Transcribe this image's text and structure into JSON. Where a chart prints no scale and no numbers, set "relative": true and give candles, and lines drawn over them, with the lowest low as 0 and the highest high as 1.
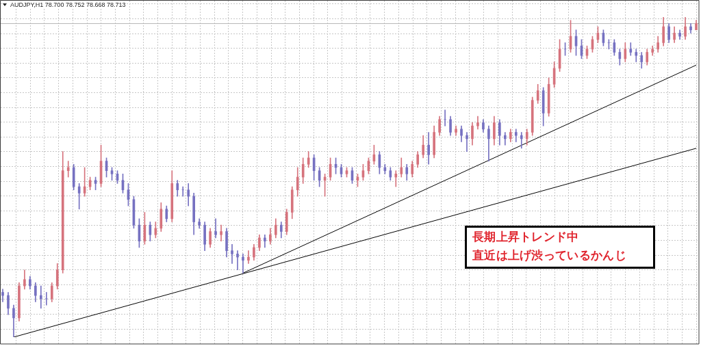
{
  "chart_data": {
    "type": "candlestick",
    "title": "AUDJPY,H1 78.700 78.752 78.668 78.713",
    "relative": true,
    "grid": true,
    "categories": [
      null,
      null,
      null,
      null,
      null,
      null,
      null,
      null,
      null,
      null,
      null,
      null,
      null,
      null,
      null,
      null,
      null,
      null,
      null,
      null,
      null,
      null,
      null,
      null,
      null,
      null,
      null,
      null,
      null,
      null,
      null,
      null,
      null,
      null,
      null,
      null,
      null,
      null,
      null,
      null,
      null,
      null,
      null,
      null,
      null,
      null,
      null,
      null,
      null,
      null,
      null,
      null,
      null,
      null,
      null,
      null,
      null,
      null,
      null,
      null,
      null,
      null,
      null,
      null,
      null,
      null,
      null,
      null,
      null,
      null,
      null,
      null,
      null,
      null,
      null,
      null,
      null,
      null,
      null,
      null,
      null,
      null,
      null,
      null,
      null,
      null,
      null,
      null,
      null,
      null,
      null,
      null,
      null,
      null,
      null,
      null,
      null,
      null,
      null,
      null,
      null,
      null,
      null,
      null,
      null,
      null,
      null,
      null,
      null,
      null,
      null,
      null,
      null,
      null,
      null,
      null,
      null,
      null,
      null,
      null,
      null,
      null,
      null,
      null,
      null,
      null,
      null,
      null
    ],
    "ohlc": [
      [
        0.14,
        0.15,
        0.11,
        0.13
      ],
      [
        0.13,
        0.14,
        0.07,
        0.09
      ],
      [
        0.09,
        0.1,
        0,
        0.06
      ],
      [
        0.06,
        0.17,
        0.05,
        0.16
      ],
      [
        0.16,
        0.21,
        0.15,
        0.18
      ],
      [
        0.18,
        0.19,
        0.15,
        0.16
      ],
      [
        0.16,
        0.17,
        0.11,
        0.13
      ],
      [
        0.13,
        0.16,
        0.09,
        0.12
      ],
      [
        0.12,
        0.14,
        0.1,
        0.12
      ],
      [
        0.12,
        0.17,
        0.11,
        0.16
      ],
      [
        0.16,
        0.23,
        0.15,
        0.21
      ],
      [
        0.21,
        0.58,
        0.2,
        0.52
      ],
      [
        0.52,
        0.55,
        0.5,
        0.53
      ],
      [
        0.53,
        0.54,
        0.46,
        0.47
      ],
      [
        0.47,
        0.48,
        0.4,
        0.45
      ],
      [
        0.45,
        0.53,
        0.44,
        0.47
      ],
      [
        0.47,
        0.5,
        0.46,
        0.49
      ],
      [
        0.49,
        0.5,
        0.46,
        0.48
      ],
      [
        0.48,
        0.6,
        0.47,
        0.55
      ],
      [
        0.55,
        0.56,
        0.5,
        0.52
      ],
      [
        0.52,
        0.53,
        0.49,
        0.51
      ],
      [
        0.51,
        0.52,
        0.48,
        0.49
      ],
      [
        0.49,
        0.51,
        0.45,
        0.46
      ],
      [
        0.46,
        0.48,
        0.41,
        0.43
      ],
      [
        0.43,
        0.44,
        0.34,
        0.35
      ],
      [
        0.35,
        0.37,
        0.28,
        0.3
      ],
      [
        0.3,
        0.39,
        0.29,
        0.35
      ],
      [
        0.35,
        0.36,
        0.3,
        0.32
      ],
      [
        0.32,
        0.36,
        0.31,
        0.34
      ],
      [
        0.34,
        0.42,
        0.33,
        0.4
      ],
      [
        0.4,
        0.41,
        0.36,
        0.37
      ],
      [
        0.37,
        0.52,
        0.36,
        0.48
      ],
      [
        0.48,
        0.49,
        0.44,
        0.46
      ],
      [
        0.46,
        0.47,
        0.44,
        0.46
      ],
      [
        0.46,
        0.48,
        0.41,
        0.44
      ],
      [
        0.44,
        0.45,
        0.32,
        0.36
      ],
      [
        0.36,
        0.37,
        0.34,
        0.35
      ],
      [
        0.35,
        0.36,
        0.27,
        0.29
      ],
      [
        0.29,
        0.34,
        0.28,
        0.33
      ],
      [
        0.33,
        0.37,
        0.31,
        0.32
      ],
      [
        0.32,
        0.35,
        0.3,
        0.33
      ],
      [
        0.33,
        0.34,
        0.25,
        0.27
      ],
      [
        0.27,
        0.29,
        0.23,
        0.26
      ],
      [
        0.26,
        0.27,
        0.21,
        0.25
      ],
      [
        0.25,
        0.26,
        0.2,
        0.24
      ],
      [
        0.24,
        0.27,
        0.23,
        0.25
      ],
      [
        0.25,
        0.29,
        0.24,
        0.28
      ],
      [
        0.28,
        0.32,
        0.27,
        0.31
      ],
      [
        0.31,
        0.32,
        0.28,
        0.3
      ],
      [
        0.3,
        0.34,
        0.29,
        0.32
      ],
      [
        0.32,
        0.37,
        0.31,
        0.35
      ],
      [
        0.35,
        0.36,
        0.31,
        0.33
      ],
      [
        0.33,
        0.4,
        0.32,
        0.39
      ],
      [
        0.39,
        0.47,
        0.37,
        0.46
      ],
      [
        0.46,
        0.53,
        0.44,
        0.5
      ],
      [
        0.5,
        0.56,
        0.48,
        0.54
      ],
      [
        0.54,
        0.58,
        0.53,
        0.56
      ],
      [
        0.56,
        0.57,
        0.49,
        0.52
      ],
      [
        0.52,
        0.53,
        0.47,
        0.49
      ],
      [
        0.49,
        0.51,
        0.44,
        0.5
      ],
      [
        0.5,
        0.56,
        0.49,
        0.54
      ],
      [
        0.54,
        0.56,
        0.51,
        0.53
      ],
      [
        0.53,
        0.54,
        0.5,
        0.51
      ],
      [
        0.51,
        0.53,
        0.5,
        0.52
      ],
      [
        0.52,
        0.53,
        0.48,
        0.49
      ],
      [
        0.49,
        0.51,
        0.47,
        0.5
      ],
      [
        0.5,
        0.54,
        0.49,
        0.52
      ],
      [
        0.52,
        0.56,
        0.51,
        0.55
      ],
      [
        0.55,
        0.6,
        0.54,
        0.57
      ],
      [
        0.57,
        0.58,
        0.51,
        0.53
      ],
      [
        0.53,
        0.54,
        0.51,
        0.52
      ],
      [
        0.52,
        0.53,
        0.49,
        0.5
      ],
      [
        0.5,
        0.52,
        0.47,
        0.51
      ],
      [
        0.51,
        0.56,
        0.5,
        0.53
      ],
      [
        0.53,
        0.54,
        0.49,
        0.51
      ],
      [
        0.51,
        0.55,
        0.5,
        0.54
      ],
      [
        0.54,
        0.58,
        0.53,
        0.57
      ],
      [
        0.57,
        0.63,
        0.56,
        0.6
      ],
      [
        0.6,
        0.64,
        0.54,
        0.57
      ],
      [
        0.57,
        0.66,
        0.56,
        0.64
      ],
      [
        0.64,
        0.69,
        0.63,
        0.68
      ],
      [
        0.68,
        0.71,
        0.66,
        0.68
      ],
      [
        0.68,
        0.69,
        0.63,
        0.64
      ],
      [
        0.64,
        0.66,
        0.63,
        0.65
      ],
      [
        0.65,
        0.66,
        0.61,
        0.63
      ],
      [
        0.63,
        0.64,
        0.58,
        0.62
      ],
      [
        0.62,
        0.67,
        0.6,
        0.66
      ],
      [
        0.66,
        0.69,
        0.65,
        0.67
      ],
      [
        0.67,
        0.68,
        0.64,
        0.65
      ],
      [
        0.65,
        0.66,
        0.55,
        0.62
      ],
      [
        0.62,
        0.69,
        0.6,
        0.67
      ],
      [
        0.67,
        0.68,
        0.6,
        0.63
      ],
      [
        0.63,
        0.64,
        0.6,
        0.62
      ],
      [
        0.62,
        0.65,
        0.61,
        0.64
      ],
      [
        0.64,
        0.65,
        0.61,
        0.63
      ],
      [
        0.63,
        0.64,
        0.59,
        0.62
      ],
      [
        0.62,
        0.65,
        0.6,
        0.64
      ],
      [
        0.64,
        0.75,
        0.63,
        0.74
      ],
      [
        0.74,
        0.79,
        0.73,
        0.77
      ],
      [
        0.77,
        0.78,
        0.66,
        0.7
      ],
      [
        0.7,
        0.81,
        0.69,
        0.79
      ],
      [
        0.79,
        0.86,
        0.78,
        0.84
      ],
      [
        0.84,
        0.93,
        0.83,
        0.9
      ],
      [
        0.9,
        0.92,
        0.88,
        0.9
      ],
      [
        0.9,
        0.99,
        0.89,
        0.94
      ],
      [
        0.94,
        0.96,
        0.88,
        0.91
      ],
      [
        0.91,
        0.93,
        0.87,
        0.88
      ],
      [
        0.88,
        0.91,
        0.87,
        0.9
      ],
      [
        0.9,
        0.94,
        0.89,
        0.93
      ],
      [
        0.93,
        0.97,
        0.92,
        0.95
      ],
      [
        0.95,
        0.96,
        0.91,
        0.92
      ],
      [
        0.92,
        0.93,
        0.9,
        0.92
      ],
      [
        0.92,
        0.93,
        0.88,
        0.89
      ],
      [
        0.89,
        0.9,
        0.85,
        0.87
      ],
      [
        0.87,
        0.92,
        0.86,
        0.9
      ],
      [
        0.9,
        0.92,
        0.88,
        0.89
      ],
      [
        0.89,
        0.9,
        0.86,
        0.88
      ],
      [
        0.88,
        0.89,
        0.84,
        0.86
      ],
      [
        0.86,
        0.9,
        0.85,
        0.89
      ],
      [
        0.89,
        0.91,
        0.88,
        0.9
      ],
      [
        0.9,
        0.94,
        0.89,
        0.92
      ],
      [
        0.92,
        1,
        0.91,
        0.97
      ],
      [
        0.97,
        0.98,
        0.92,
        0.93
      ],
      [
        0.93,
        0.97,
        0.92,
        0.95
      ],
      [
        0.95,
        0.96,
        0.93,
        0.94
      ],
      [
        0.94,
        1,
        0.93,
        0.97
      ],
      [
        0.97,
        0.98,
        0.95,
        0.96
      ],
      [
        0.96,
        0.99,
        0.96,
        0.98
      ]
    ],
    "colors": [
      "#7671c1",
      "#7671c1",
      "#7671c1",
      "#d6737d",
      "#d6737d",
      "#7671c1",
      "#7671c1",
      "#7671c1",
      "#7671c1",
      "#d6737d",
      "#d6737d",
      "#d6737d",
      "#d6737d",
      "#7671c1",
      "#7671c1",
      "#d6737d",
      "#d6737d",
      "#7671c1",
      "#d6737d",
      "#7671c1",
      "#7671c1",
      "#7671c1",
      "#7671c1",
      "#7671c1",
      "#7671c1",
      "#7671c1",
      "#d6737d",
      "#7671c1",
      "#d6737d",
      "#d6737d",
      "#7671c1",
      "#d6737d",
      "#7671c1",
      "#7671c1",
      "#7671c1",
      "#7671c1",
      "#7671c1",
      "#7671c1",
      "#d6737d",
      "#7671c1",
      "#d6737d",
      "#7671c1",
      "#7671c1",
      "#7671c1",
      "#7671c1",
      "#d6737d",
      "#d6737d",
      "#d6737d",
      "#7671c1",
      "#d6737d",
      "#d6737d",
      "#7671c1",
      "#d6737d",
      "#d6737d",
      "#d6737d",
      "#d6737d",
      "#d6737d",
      "#7671c1",
      "#7671c1",
      "#d6737d",
      "#d6737d",
      "#7671c1",
      "#7671c1",
      "#d6737d",
      "#7671c1",
      "#d6737d",
      "#d6737d",
      "#d6737d",
      "#d6737d",
      "#7671c1",
      "#7671c1",
      "#7671c1",
      "#d6737d",
      "#d6737d",
      "#7671c1",
      "#d6737d",
      "#d6737d",
      "#d6737d",
      "#7671c1",
      "#d6737d",
      "#d6737d",
      "#7671c1",
      "#7671c1",
      "#d6737d",
      "#7671c1",
      "#7671c1",
      "#d6737d",
      "#d6737d",
      "#7671c1",
      "#7671c1",
      "#d6737d",
      "#7671c1",
      "#7671c1",
      "#d6737d",
      "#7671c1",
      "#7671c1",
      "#d6737d",
      "#d6737d",
      "#d6737d",
      "#7671c1",
      "#d6737d",
      "#d6737d",
      "#d6737d",
      "#7671c1",
      "#d6737d",
      "#7671c1",
      "#7671c1",
      "#d6737d",
      "#d6737d",
      "#d6737d",
      "#7671c1",
      "#7671c1",
      "#7671c1",
      "#7671c1",
      "#d6737d",
      "#7671c1",
      "#7671c1",
      "#7671c1",
      "#d6737d",
      "#d6737d",
      "#d6737d",
      "#d6737d",
      "#7671c1",
      "#d6737d",
      "#7671c1",
      "#d6737d",
      "#7671c1",
      "#d6737d"
    ],
    "series": [
      {
        "type": "line",
        "color": "#000000",
        "values": [
          null,
          null,
          0,
          null,
          null,
          null,
          null,
          null,
          null,
          null,
          null,
          null,
          null,
          null,
          null,
          null,
          null,
          null,
          null,
          null,
          null,
          null,
          null,
          null,
          null,
          null,
          null,
          null,
          null,
          null,
          null,
          null,
          null,
          null,
          null,
          null,
          null,
          null,
          null,
          null,
          null,
          null,
          null,
          null,
          null,
          null,
          null,
          null,
          null,
          null,
          null,
          null,
          null,
          null,
          null,
          null,
          null,
          null,
          null,
          null,
          null,
          null,
          null,
          null,
          null,
          null,
          null,
          null,
          null,
          null,
          null,
          null,
          null,
          null,
          null,
          null,
          null,
          null,
          null,
          null,
          null,
          null,
          null,
          null,
          null,
          null,
          null,
          null,
          null,
          null,
          null,
          null,
          null,
          null,
          null,
          null,
          null,
          null,
          null,
          null,
          null,
          null,
          null,
          null,
          null,
          null,
          null,
          null,
          null,
          null,
          null,
          null,
          null,
          null,
          null,
          null,
          null,
          null,
          null,
          null,
          null,
          null,
          null,
          null,
          null,
          null,
          null,
          0.59
        ]
      },
      {
        "type": "line",
        "color": "#000000",
        "values": [
          null,
          null,
          null,
          null,
          null,
          null,
          null,
          null,
          null,
          null,
          null,
          null,
          null,
          null,
          null,
          null,
          null,
          null,
          null,
          null,
          null,
          null,
          null,
          null,
          null,
          null,
          null,
          null,
          null,
          null,
          null,
          null,
          null,
          null,
          null,
          null,
          null,
          null,
          null,
          null,
          null,
          null,
          null,
          null,
          0.2,
          null,
          null,
          null,
          null,
          null,
          null,
          null,
          null,
          null,
          null,
          null,
          null,
          null,
          null,
          null,
          null,
          null,
          null,
          null,
          null,
          null,
          null,
          null,
          null,
          null,
          null,
          null,
          null,
          null,
          null,
          null,
          null,
          null,
          null,
          null,
          null,
          null,
          null,
          null,
          null,
          null,
          null,
          null,
          null,
          null,
          null,
          null,
          null,
          null,
          null,
          null,
          null,
          null,
          null,
          null,
          null,
          null,
          null,
          null,
          null,
          null,
          null,
          null,
          null,
          null,
          null,
          null,
          null,
          null,
          null,
          null,
          null,
          null,
          null,
          null,
          null,
          null,
          null,
          null,
          null,
          null,
          null,
          0.85
        ]
      }
    ],
    "ref_lines": [
      {
        "axis": "y",
        "value": 0.98,
        "color": "#b8b8b8"
      }
    ],
    "annotations": [
      "長期上昇トレンド中",
      "直近は上げ渋っているかんじ"
    ]
  }
}
